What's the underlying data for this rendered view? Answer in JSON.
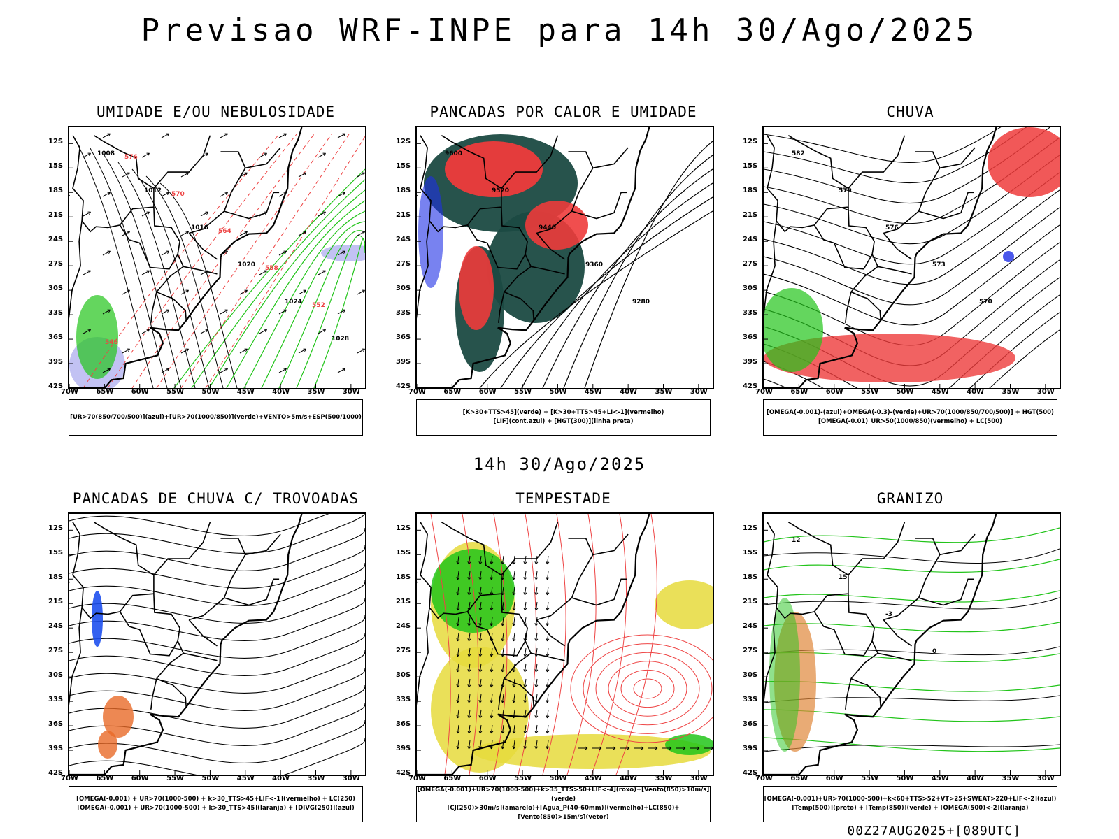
{
  "header": {
    "title": "Previsao WRF-INPE  para 14h 30/Ago/2025"
  },
  "middle": {
    "title": "14h 30/Ago/2025"
  },
  "footer": {
    "run_label": "00Z27AUG2025+[089UTC]"
  },
  "axes": {
    "lat_labels": [
      "12S",
      "15S",
      "18S",
      "21S",
      "24S",
      "27S",
      "30S",
      "33S",
      "36S",
      "39S",
      "42S"
    ],
    "lon_labels": [
      "70W",
      "65W",
      "60W",
      "55W",
      "50W",
      "45W",
      "40W",
      "35W",
      "30W"
    ]
  },
  "panels": [
    {
      "title": "UMIDADE E/OU NEBULOSIDADE",
      "legend": [
        "[UR>70(850/700/500)](azul)+[UR>70(1000/850)](verde)+VENTO>5m/s+ESP(500/1000)"
      ],
      "contour_labels": [
        "1008",
        "1012",
        "1016",
        "1020",
        "1024",
        "1028",
        "576",
        "570",
        "564",
        "558",
        "552",
        "546"
      ],
      "colors": {
        "field_a": "#b3b3f0",
        "field_b": "#22c41a",
        "contour": "#ee4444"
      }
    },
    {
      "title": "PANCADAS POR CALOR E UMIDADE",
      "legend": [
        "[K>30+TTS>45](verde) + [K>30+TTS>45+LI<-1](vermelho)",
        "[LIF](cont.azul) + [HGT(300)](linha preta)"
      ],
      "contour_labels": [
        "9600",
        "9520",
        "9440",
        "9360",
        "9280"
      ],
      "colors": {
        "field_a": "#1b4a42",
        "field_b": "#ee3b3b",
        "contour": "#1e2ee6"
      }
    },
    {
      "title": "CHUVA",
      "legend": [
        "[OMEGA(-0.001)-(azul)+OMEGA(-0.3)-(verde)+UR>70(1000/850/700/500)] + HGT(500)",
        "[OMEGA(-0.01)_UR>50(1000/850)(vermelho) + LC(500)"
      ],
      "contour_labels": [
        "582",
        "579",
        "576",
        "573",
        "570"
      ],
      "colors": {
        "field_a": "#ee3b3b",
        "field_b": "#22c41a",
        "contour": "#1e2ee6"
      }
    },
    {
      "title": "PANCADAS DE CHUVA C/ TROVOADAS",
      "legend": [
        "[OMEGA(-0.001) + UR>70(1000-500) + k>30_TTS>45+LIF<-1](vermelho) + LC(250)",
        "[OMEGA(-0.001) + UR>70(1000-500) + k>30_TTS>45](laranja) + [DIVG(250)](azul)"
      ],
      "contour_labels": [],
      "colors": {
        "field_a": "#e86a28",
        "field_b": "#1e50ee",
        "contour": "#ee3b3b"
      }
    },
    {
      "title": "TEMPESTADE",
      "legend": [
        "[OMEGA(-0.001)+UR>70(1000-500)+k>35_TTS>50+LIF<-4](roxo)+[Vento(850)>10m/s](verde)",
        "[CJ(250)>30m/s](amarelo)+[Agua_P(40-60mm)](vermelho)+LC(850)+[Vento(850)>15m/s](vetor)"
      ],
      "contour_labels": [],
      "colors": {
        "field_a": "#e6da3c",
        "field_b": "#22c41a",
        "contour": "#ee4444"
      }
    },
    {
      "title": "GRANIZO",
      "legend": [
        "[OMEGA(-0.001)+UR>70(1000-500)+k<60+TTS>52+VT>25+SWEAT>220+LIF<-2](azul)",
        "[Temp(500)](preto) + [Temp(850)](verde) + [OMEGA(500)<-2](laranja)"
      ],
      "contour_labels": [
        "12",
        "15",
        "-3",
        "0"
      ],
      "colors": {
        "field_a": "#22c41a",
        "field_b": "#e0883a",
        "contour": "#000000"
      }
    }
  ]
}
